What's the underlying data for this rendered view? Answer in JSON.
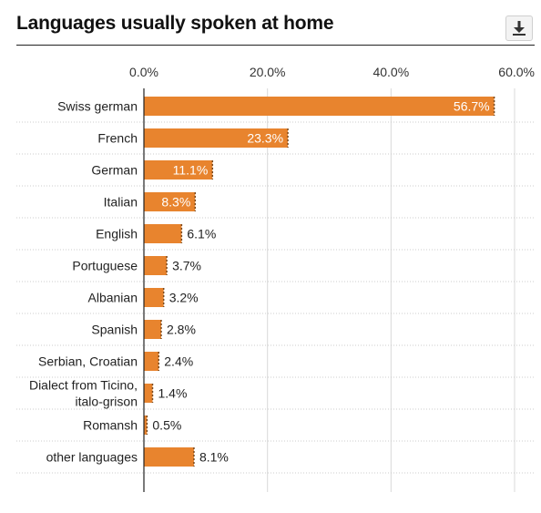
{
  "header": {
    "title": "Languages usually spoken at home"
  },
  "toolbar": {
    "download_icon": "download-icon"
  },
  "colors": {
    "bar": "#e8842e",
    "bar_edge": "#7a4a1e",
    "grid": "#d9d9d9",
    "row_sep": "#cccccc",
    "axis": "#222222"
  },
  "chart_data": {
    "type": "bar",
    "orientation": "horizontal",
    "title": "Languages usually spoken at home",
    "xlabel": "",
    "ylabel": "",
    "xlim": [
      0,
      60
    ],
    "ticks": [
      "0.0%",
      "20.0%",
      "40.0%",
      "60.0%"
    ],
    "tick_values": [
      0,
      20,
      40,
      60
    ],
    "categories": [
      "Swiss german",
      "French",
      "German",
      "Italian",
      "English",
      "Portuguese",
      "Albanian",
      "Spanish",
      "Serbian, Croatian",
      [
        "Dialect from Ticino,",
        "italo-grison"
      ],
      "Romansh",
      "other languages"
    ],
    "values": [
      56.7,
      23.3,
      11.1,
      8.3,
      6.1,
      3.7,
      3.2,
      2.8,
      2.4,
      1.4,
      0.5,
      8.1
    ],
    "labels": [
      "56.7%",
      "23.3%",
      "11.1%",
      "8.3%",
      "6.1%",
      "3.7%",
      "3.2%",
      "2.8%",
      "2.4%",
      "1.4%",
      "0.5%",
      "8.1%"
    ],
    "grid": true,
    "legend": "none"
  }
}
